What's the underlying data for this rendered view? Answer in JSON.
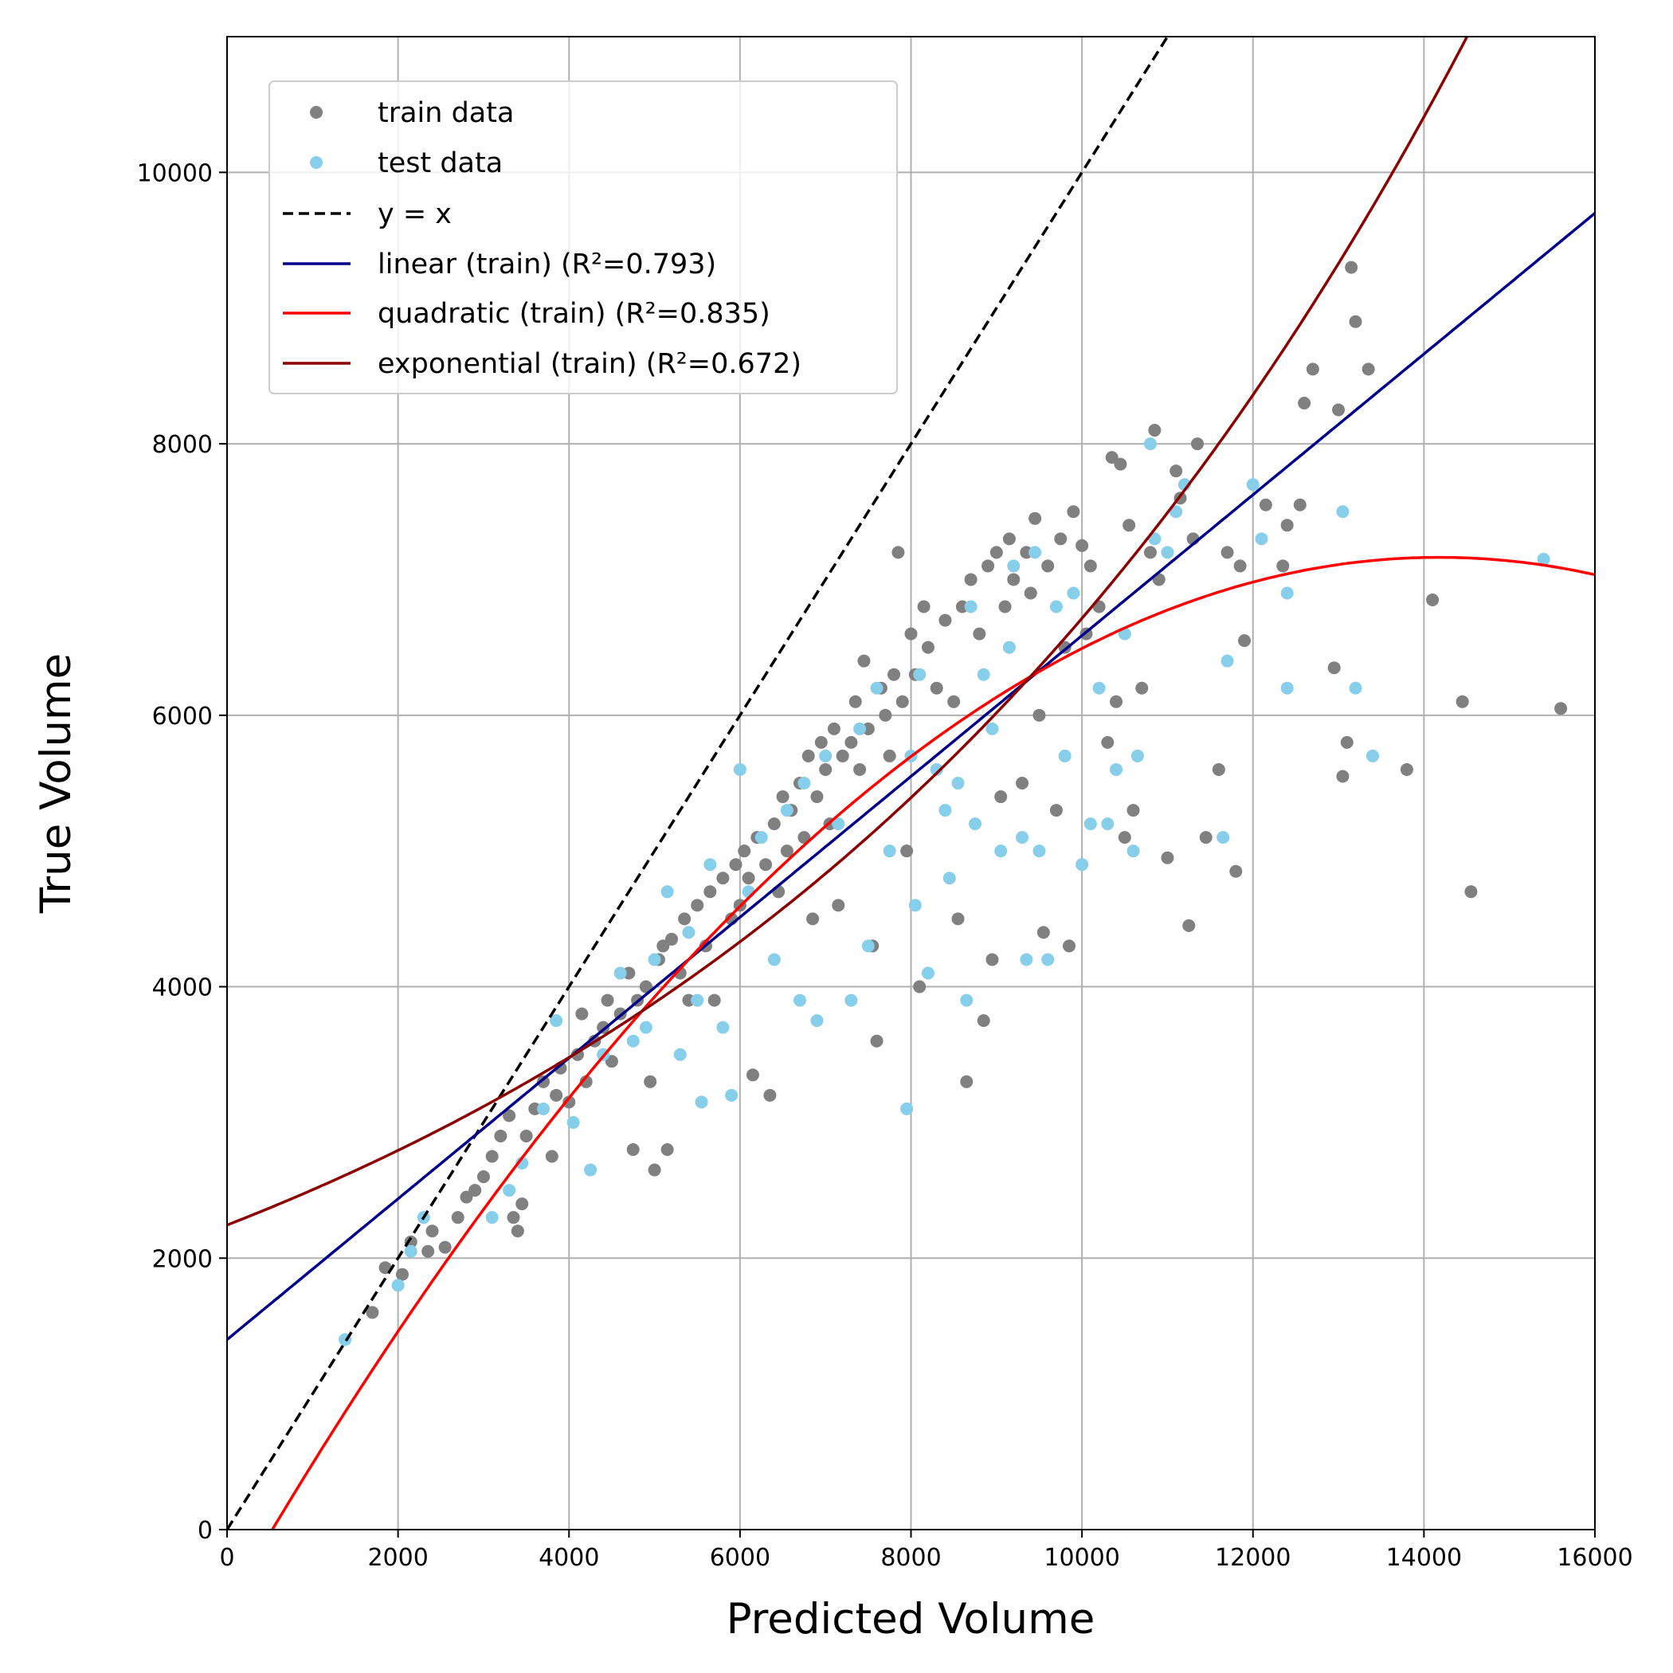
{
  "chart_data": {
    "type": "scatter",
    "xlabel": "Predicted Volume",
    "ylabel": "True Volume",
    "xlim": [
      0,
      16000
    ],
    "ylim": [
      0,
      11000
    ],
    "xticks": [
      0,
      2000,
      4000,
      6000,
      8000,
      10000,
      12000,
      14000,
      16000
    ],
    "yticks": [
      0,
      2000,
      4000,
      6000,
      8000,
      10000
    ],
    "grid": true,
    "legend_position": "top-left",
    "legend": [
      {
        "key": "train",
        "label": "train data",
        "kind": "marker",
        "color": "#808080"
      },
      {
        "key": "test",
        "label": "test data",
        "kind": "marker",
        "color": "#87ceeb"
      },
      {
        "key": "identity",
        "label": "y = x",
        "kind": "dashed",
        "color": "#000000"
      },
      {
        "key": "linear",
        "label": "linear (train) (R²=0.793)",
        "kind": "line",
        "color": "#00008b"
      },
      {
        "key": "quadratic",
        "label": "quadratic (train) (R²=0.835)",
        "kind": "line",
        "color": "#ff0000"
      },
      {
        "key": "exponential",
        "label": "exponential (train) (R²=0.672)",
        "kind": "line",
        "color": "#8b0000"
      }
    ],
    "series": [
      {
        "name": "train data",
        "kind": "scatter",
        "color": "#808080",
        "points": [
          [
            1700,
            1600
          ],
          [
            1850,
            1930
          ],
          [
            2050,
            1880
          ],
          [
            2150,
            2120
          ],
          [
            2350,
            2050
          ],
          [
            2400,
            2200
          ],
          [
            2550,
            2080
          ],
          [
            2700,
            2300
          ],
          [
            2800,
            2450
          ],
          [
            2900,
            2500
          ],
          [
            3000,
            2600
          ],
          [
            3100,
            2750
          ],
          [
            3200,
            2900
          ],
          [
            3300,
            3050
          ],
          [
            3350,
            2300
          ],
          [
            3400,
            2200
          ],
          [
            3450,
            2400
          ],
          [
            3500,
            2900
          ],
          [
            3600,
            3100
          ],
          [
            3700,
            3300
          ],
          [
            3800,
            2750
          ],
          [
            3850,
            3200
          ],
          [
            3900,
            3400
          ],
          [
            4000,
            3150
          ],
          [
            4100,
            3500
          ],
          [
            4150,
            3800
          ],
          [
            4200,
            3300
          ],
          [
            4300,
            3600
          ],
          [
            4400,
            3700
          ],
          [
            4450,
            3900
          ],
          [
            4500,
            3450
          ],
          [
            4600,
            3800
          ],
          [
            4700,
            4100
          ],
          [
            4750,
            2800
          ],
          [
            4800,
            3900
          ],
          [
            4900,
            4000
          ],
          [
            4950,
            3300
          ],
          [
            5000,
            2650
          ],
          [
            5050,
            4200
          ],
          [
            5100,
            4300
          ],
          [
            5150,
            2800
          ],
          [
            5200,
            4350
          ],
          [
            5300,
            4100
          ],
          [
            5350,
            4500
          ],
          [
            5400,
            3900
          ],
          [
            5500,
            4600
          ],
          [
            5600,
            4300
          ],
          [
            5650,
            4700
          ],
          [
            5700,
            3900
          ],
          [
            5800,
            4800
          ],
          [
            5900,
            4500
          ],
          [
            5950,
            4900
          ],
          [
            6000,
            4600
          ],
          [
            6050,
            5000
          ],
          [
            6100,
            4800
          ],
          [
            6150,
            3350
          ],
          [
            6200,
            5100
          ],
          [
            6300,
            4900
          ],
          [
            6350,
            3200
          ],
          [
            6400,
            5200
          ],
          [
            6450,
            4700
          ],
          [
            6500,
            5400
          ],
          [
            6550,
            5000
          ],
          [
            6600,
            5300
          ],
          [
            6700,
            5500
          ],
          [
            6750,
            5100
          ],
          [
            6800,
            5700
          ],
          [
            6850,
            4500
          ],
          [
            6900,
            5400
          ],
          [
            6950,
            5800
          ],
          [
            7000,
            5600
          ],
          [
            7050,
            5200
          ],
          [
            7100,
            5900
          ],
          [
            7150,
            4600
          ],
          [
            7200,
            5700
          ],
          [
            7300,
            5800
          ],
          [
            7350,
            6100
          ],
          [
            7400,
            5600
          ],
          [
            7450,
            6400
          ],
          [
            7500,
            5900
          ],
          [
            7550,
            4300
          ],
          [
            7600,
            3600
          ],
          [
            7650,
            6200
          ],
          [
            7700,
            6000
          ],
          [
            7750,
            5700
          ],
          [
            7800,
            6300
          ],
          [
            7850,
            7200
          ],
          [
            7900,
            6100
          ],
          [
            7950,
            5000
          ],
          [
            8000,
            6600
          ],
          [
            8050,
            6300
          ],
          [
            8100,
            4000
          ],
          [
            8150,
            6800
          ],
          [
            8200,
            6500
          ],
          [
            8300,
            6200
          ],
          [
            8400,
            6700
          ],
          [
            8500,
            6100
          ],
          [
            8550,
            4500
          ],
          [
            8600,
            6800
          ],
          [
            8650,
            3300
          ],
          [
            8700,
            7000
          ],
          [
            8800,
            6600
          ],
          [
            8850,
            3750
          ],
          [
            8900,
            7100
          ],
          [
            8950,
            4200
          ],
          [
            9000,
            7200
          ],
          [
            9050,
            5400
          ],
          [
            9100,
            6800
          ],
          [
            9150,
            7300
          ],
          [
            9200,
            7000
          ],
          [
            9300,
            5500
          ],
          [
            9350,
            7200
          ],
          [
            9400,
            6900
          ],
          [
            9450,
            7450
          ],
          [
            9500,
            6000
          ],
          [
            9550,
            4400
          ],
          [
            9600,
            7100
          ],
          [
            9700,
            5300
          ],
          [
            9750,
            7300
          ],
          [
            9800,
            6500
          ],
          [
            9850,
            4300
          ],
          [
            9900,
            7500
          ],
          [
            10000,
            7250
          ],
          [
            10050,
            6600
          ],
          [
            10100,
            7100
          ],
          [
            10200,
            6800
          ],
          [
            10300,
            5800
          ],
          [
            10350,
            7900
          ],
          [
            10400,
            6100
          ],
          [
            10450,
            7850
          ],
          [
            10500,
            5100
          ],
          [
            10550,
            7400
          ],
          [
            10600,
            5300
          ],
          [
            10700,
            6200
          ],
          [
            10800,
            7200
          ],
          [
            10850,
            8100
          ],
          [
            10900,
            7000
          ],
          [
            11000,
            4950
          ],
          [
            11100,
            7800
          ],
          [
            11150,
            7600
          ],
          [
            11250,
            4450
          ],
          [
            11300,
            7300
          ],
          [
            11350,
            8000
          ],
          [
            11450,
            5100
          ],
          [
            11600,
            5600
          ],
          [
            11700,
            7200
          ],
          [
            11800,
            4850
          ],
          [
            11850,
            7100
          ],
          [
            11900,
            6550
          ],
          [
            12150,
            7550
          ],
          [
            12350,
            7100
          ],
          [
            12400,
            7400
          ],
          [
            12550,
            7550
          ],
          [
            12600,
            8300
          ],
          [
            12700,
            8550
          ],
          [
            12950,
            6350
          ],
          [
            13000,
            8250
          ],
          [
            13050,
            5550
          ],
          [
            13100,
            5800
          ],
          [
            13150,
            9300
          ],
          [
            13200,
            8900
          ],
          [
            13350,
            8550
          ],
          [
            13800,
            5600
          ],
          [
            14100,
            6850
          ],
          [
            14450,
            6100
          ],
          [
            14550,
            4700
          ],
          [
            15600,
            6050
          ]
        ]
      },
      {
        "name": "test data",
        "kind": "scatter",
        "color": "#87ceeb",
        "points": [
          [
            1380,
            1400
          ],
          [
            2000,
            1800
          ],
          [
            2150,
            2050
          ],
          [
            2300,
            2300
          ],
          [
            3100,
            2300
          ],
          [
            3300,
            2500
          ],
          [
            3450,
            2700
          ],
          [
            3700,
            3100
          ],
          [
            3850,
            3750
          ],
          [
            4050,
            3000
          ],
          [
            4250,
            2650
          ],
          [
            4400,
            3500
          ],
          [
            4600,
            4100
          ],
          [
            4750,
            3600
          ],
          [
            4900,
            3700
          ],
          [
            5000,
            4200
          ],
          [
            5150,
            4700
          ],
          [
            5300,
            3500
          ],
          [
            5400,
            4400
          ],
          [
            5500,
            3900
          ],
          [
            5550,
            3150
          ],
          [
            5650,
            4900
          ],
          [
            5800,
            3700
          ],
          [
            5900,
            3200
          ],
          [
            6000,
            5600
          ],
          [
            6100,
            4700
          ],
          [
            6250,
            5100
          ],
          [
            6400,
            4200
          ],
          [
            6550,
            5300
          ],
          [
            6700,
            3900
          ],
          [
            6750,
            5500
          ],
          [
            6900,
            3750
          ],
          [
            7000,
            5700
          ],
          [
            7150,
            5200
          ],
          [
            7300,
            3900
          ],
          [
            7400,
            5900
          ],
          [
            7500,
            4300
          ],
          [
            7600,
            6200
          ],
          [
            7750,
            5000
          ],
          [
            7950,
            3100
          ],
          [
            8000,
            5700
          ],
          [
            8050,
            4600
          ],
          [
            8100,
            6300
          ],
          [
            8200,
            4100
          ],
          [
            8300,
            5600
          ],
          [
            8400,
            5300
          ],
          [
            8450,
            4800
          ],
          [
            8550,
            5500
          ],
          [
            8650,
            3900
          ],
          [
            8700,
            6800
          ],
          [
            8750,
            5200
          ],
          [
            8850,
            6300
          ],
          [
            8950,
            5900
          ],
          [
            9050,
            5000
          ],
          [
            9150,
            6500
          ],
          [
            9200,
            7100
          ],
          [
            9300,
            5100
          ],
          [
            9350,
            4200
          ],
          [
            9450,
            7200
          ],
          [
            9500,
            5000
          ],
          [
            9600,
            4200
          ],
          [
            9700,
            6800
          ],
          [
            9800,
            5700
          ],
          [
            9900,
            6900
          ],
          [
            10000,
            4900
          ],
          [
            10100,
            5200
          ],
          [
            10200,
            6200
          ],
          [
            10300,
            5200
          ],
          [
            10400,
            5600
          ],
          [
            10500,
            6600
          ],
          [
            10600,
            5000
          ],
          [
            10650,
            5700
          ],
          [
            10800,
            8000
          ],
          [
            10850,
            7300
          ],
          [
            11000,
            7200
          ],
          [
            11100,
            7500
          ],
          [
            11200,
            7700
          ],
          [
            11650,
            5100
          ],
          [
            11700,
            6400
          ],
          [
            12000,
            7700
          ],
          [
            12100,
            7300
          ],
          [
            12400,
            6900
          ],
          [
            12400,
            6200
          ],
          [
            13050,
            7500
          ],
          [
            13200,
            6200
          ],
          [
            13400,
            5700
          ],
          [
            15400,
            7150
          ]
        ]
      },
      {
        "name": "y = x",
        "kind": "dashed",
        "color": "#000000",
        "x": [
          0,
          11000
        ],
        "y": [
          0,
          11000
        ]
      },
      {
        "name": "linear (train) (R²=0.793)",
        "kind": "line",
        "color": "#00008b",
        "fit": "linear",
        "coefficients": {
          "intercept": 1400,
          "slope": 0.5187
        }
      },
      {
        "name": "quadratic (train) (R²=0.835)",
        "kind": "line",
        "color": "#ff0000",
        "fit": "quadratic",
        "coefficients": {
          "c0": -566.7,
          "c1": 1.0905,
          "c2": -3.846e-05
        }
      },
      {
        "name": "exponential (train) (R²=0.672)",
        "kind": "line",
        "color": "#8b0000",
        "fit": "exponential",
        "coefficients": {
          "a": 2244,
          "b": 0.0001096
        }
      }
    ]
  }
}
